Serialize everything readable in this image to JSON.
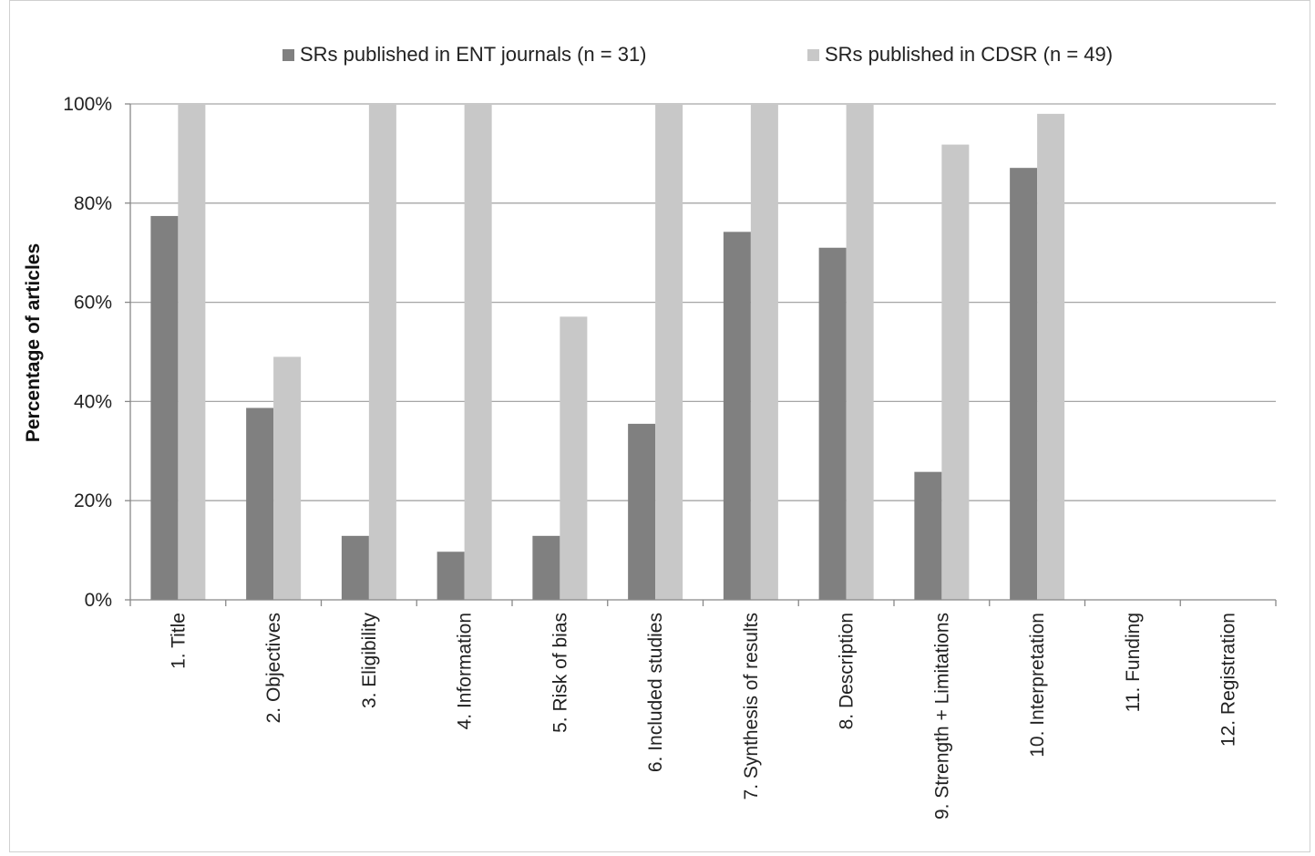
{
  "chart_data": {
    "type": "bar",
    "ylabel": "Percentage of articles",
    "xlabel": "",
    "ylim": [
      0,
      100
    ],
    "y_ticks": [
      "0%",
      "20%",
      "40%",
      "60%",
      "80%",
      "100%"
    ],
    "y_tick_values": [
      0,
      20,
      40,
      60,
      80,
      100
    ],
    "grid": true,
    "legend_position": "top",
    "categories": [
      "1. Title",
      "2. Objectives",
      "3. Eligibility",
      "4. Information",
      "5. Risk of bias",
      "6. Included studies",
      "7. Synthesis of results",
      "8. Description",
      "9. Strength + Limitations",
      "10. Interpretation",
      "11. Funding",
      "12. Registration"
    ],
    "series": [
      {
        "name": "SRs published in ENT journals (n = 31)",
        "color": "#808080",
        "values": [
          77.4,
          38.7,
          12.9,
          9.7,
          12.9,
          35.5,
          74.2,
          71.0,
          25.8,
          87.1,
          0,
          0
        ]
      },
      {
        "name": "SRs published in CDSR (n = 49)",
        "color": "#c8c8c8",
        "values": [
          100,
          49.0,
          100,
          100,
          57.1,
          100,
          100,
          100,
          91.8,
          98.0,
          0,
          0
        ]
      }
    ]
  }
}
